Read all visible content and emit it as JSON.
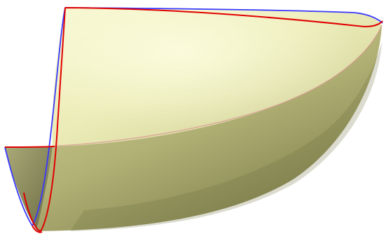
{
  "figure": {
    "kind": "3d-rendered-surface",
    "surface_fill_light": "#f3f3c6",
    "surface_fill_mid": "#dcdca0",
    "surface_fill_dark": "#7a7a48",
    "curve_colors": {
      "primary_edge": "#e00000",
      "secondary_edge": "#3a3aff"
    }
  }
}
